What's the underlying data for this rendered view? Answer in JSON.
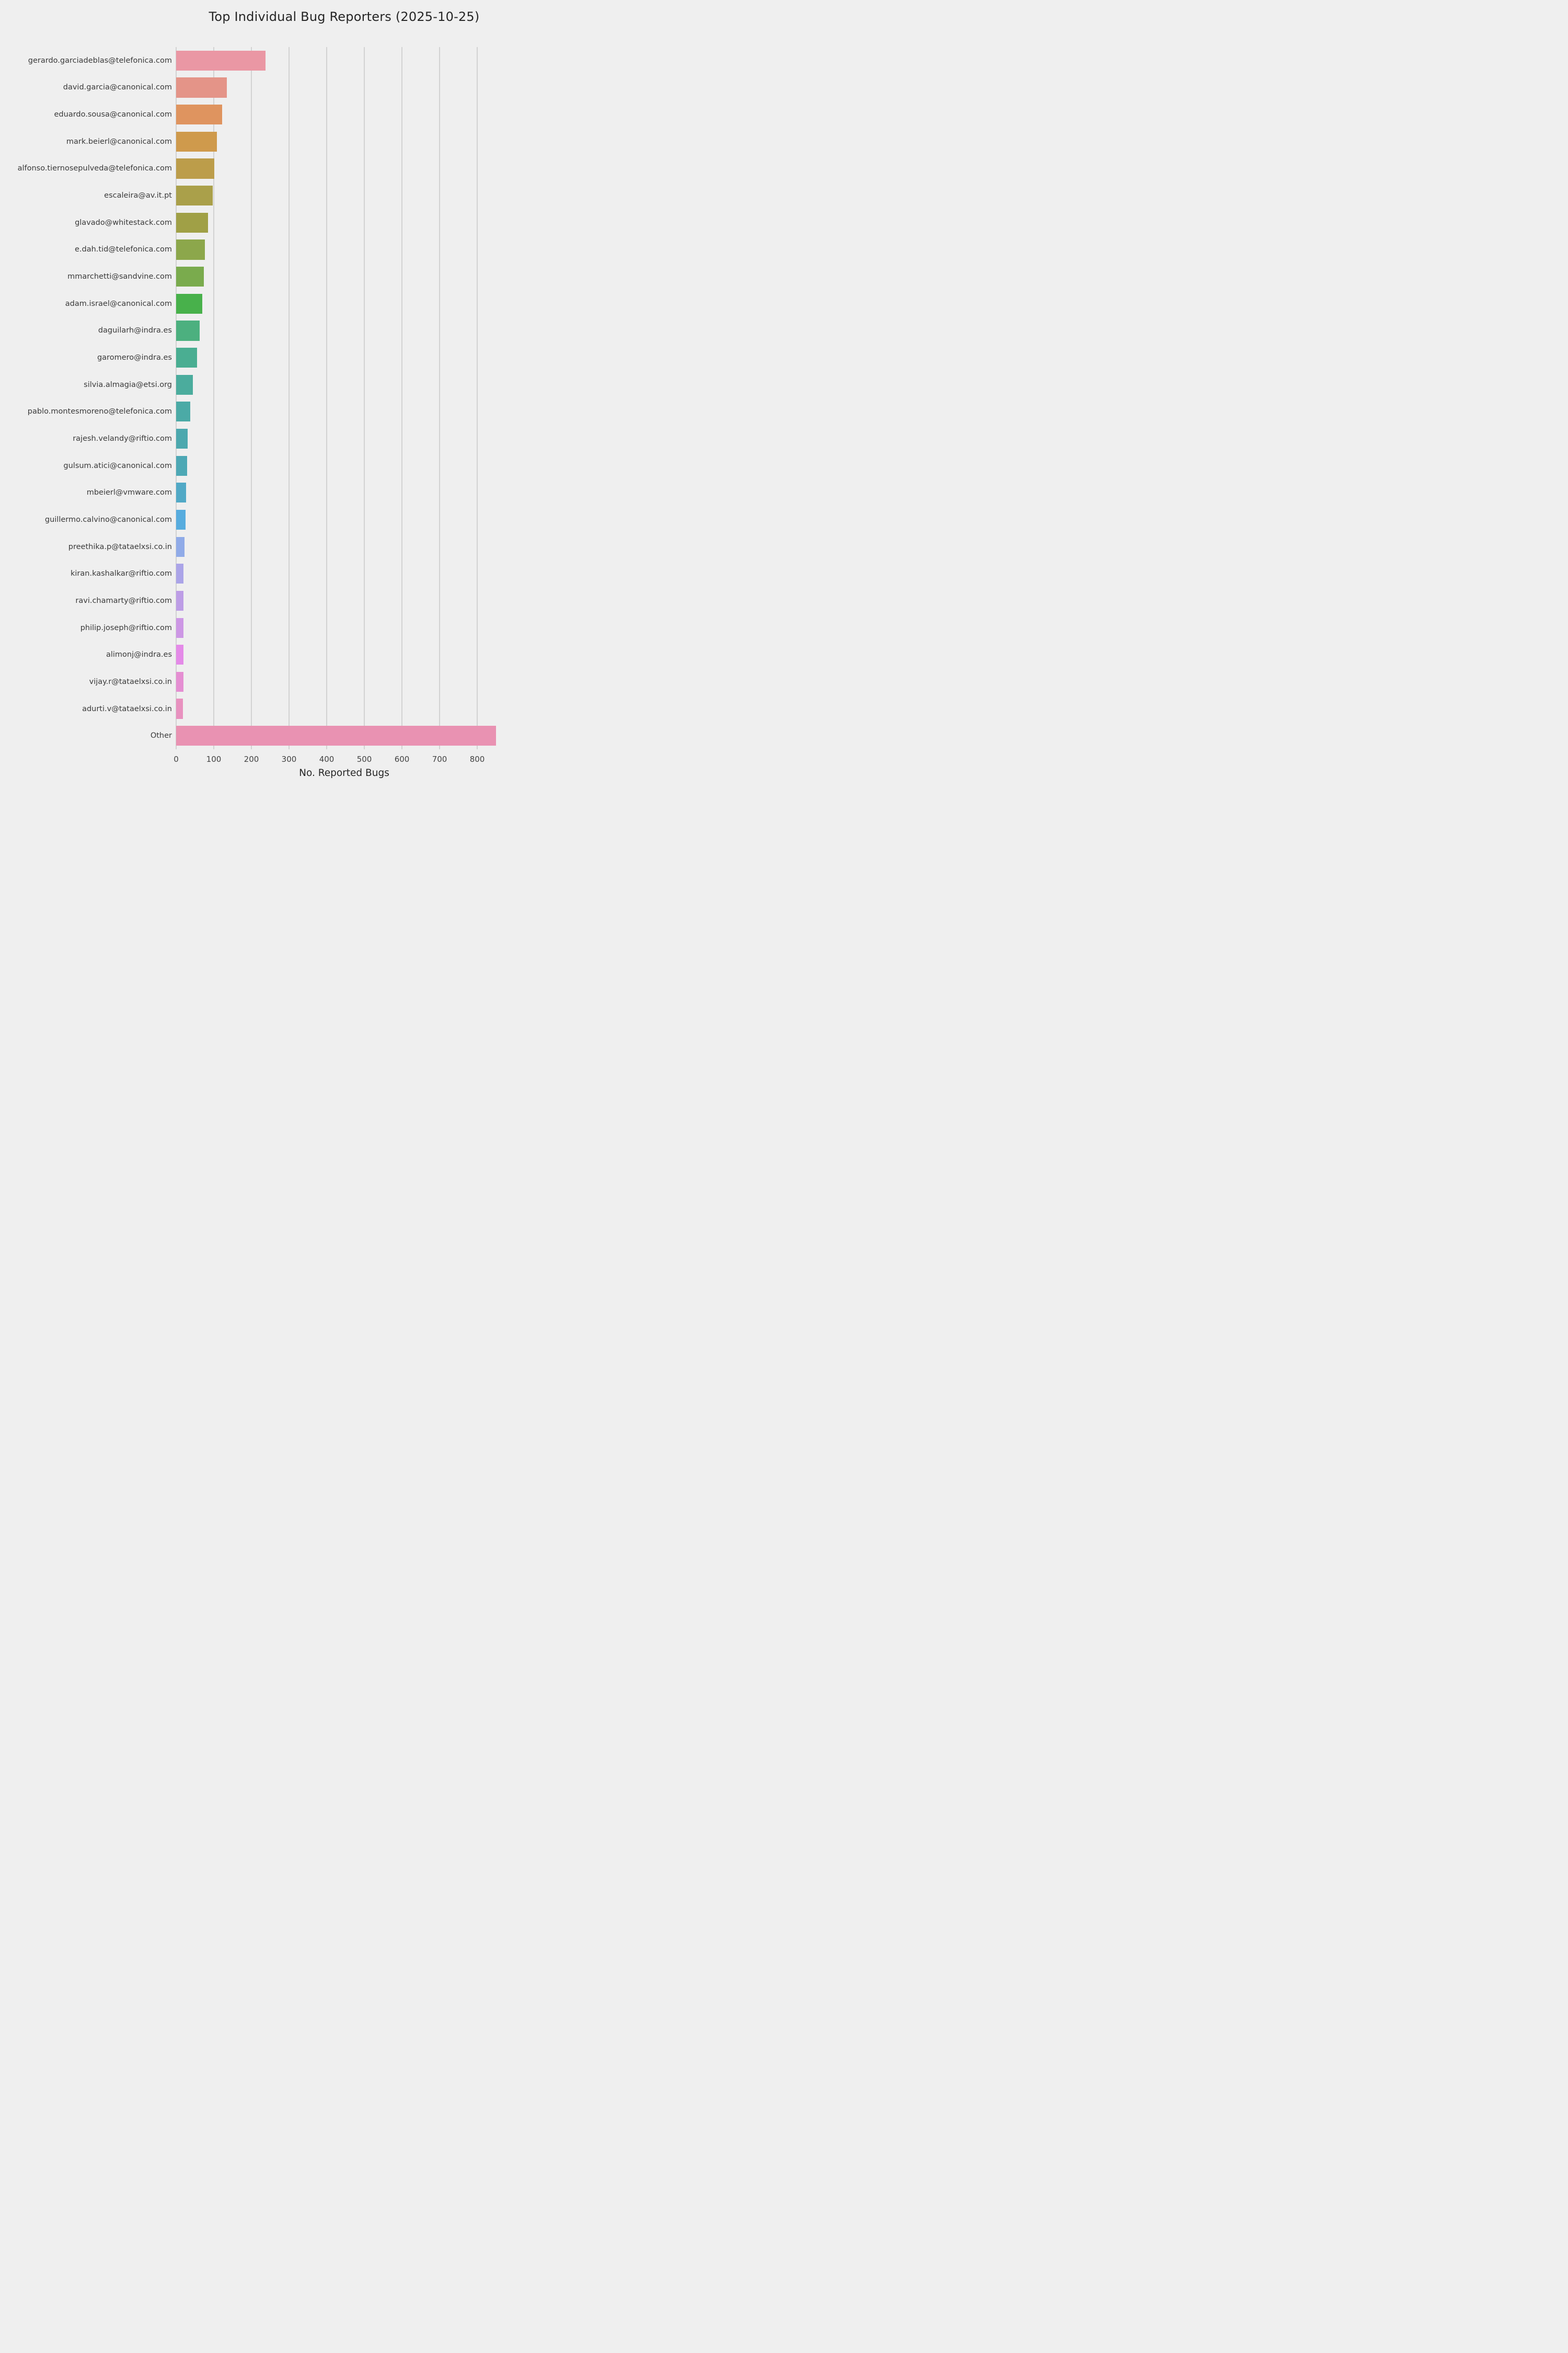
{
  "chart_data": {
    "type": "bar",
    "orientation": "horizontal",
    "title": "Top Individual Bug Reporters (2025-10-25)",
    "xlabel": "No. Reported Bugs",
    "ylabel": "",
    "xlim": [
      0,
      893
    ],
    "xticks": [
      0,
      100,
      200,
      300,
      400,
      500,
      600,
      700,
      800
    ],
    "grid": "vertical",
    "legend": "none",
    "background_color": "#efefef",
    "gridline_color": "#d2d2d2",
    "categories": [
      "gerardo.garciadeblas@telefonica.com",
      "david.garcia@canonical.com",
      "eduardo.sousa@canonical.com",
      "mark.beierl@canonical.com",
      "alfonso.tiernosepulveda@telefonica.com",
      "escaleira@av.it.pt",
      "glavado@whitestack.com",
      "e.dah.tid@telefonica.com",
      "mmarchetti@sandvine.com",
      "adam.israel@canonical.com",
      "daguilarh@indra.es",
      "garomero@indra.es",
      "silvia.almagia@etsi.org",
      "pablo.montesmoreno@telefonica.com",
      "rajesh.velandy@riftio.com",
      "gulsum.atici@canonical.com",
      "mbeierl@vmware.com",
      "guillermo.calvino@canonical.com",
      "preethika.p@tataelxsi.co.in",
      "kiran.kashalkar@riftio.com",
      "ravi.chamarty@riftio.com",
      "philip.joseph@riftio.com",
      "alimonj@indra.es",
      "vijay.r@tataelxsi.co.in",
      "adurti.v@tataelxsi.co.in",
      "Other"
    ],
    "values": [
      237,
      135,
      122,
      109,
      101,
      97,
      85,
      77,
      73,
      70,
      63,
      56,
      44,
      37,
      31,
      29,
      26,
      25,
      22,
      20,
      20,
      20,
      20,
      20,
      18,
      850
    ],
    "bar_colors": [
      "#EA97A4",
      "#E49488",
      "#DF945F",
      "#CF9A4C",
      "#BC9D4A",
      "#AAA04A",
      "#A0A046",
      "#8CA74B",
      "#7AAB4D",
      "#48B14B",
      "#4CB07F",
      "#4AAE92",
      "#4BAC9D",
      "#4BAAA6",
      "#4CA8AE",
      "#4DA8B5",
      "#51A9C6",
      "#57ACDE",
      "#90ABE8",
      "#ABA4E8",
      "#BD9DE6",
      "#CD97E5",
      "#E48AE8",
      "#E58ED2",
      "#E891BF",
      "#E992B2"
    ]
  }
}
